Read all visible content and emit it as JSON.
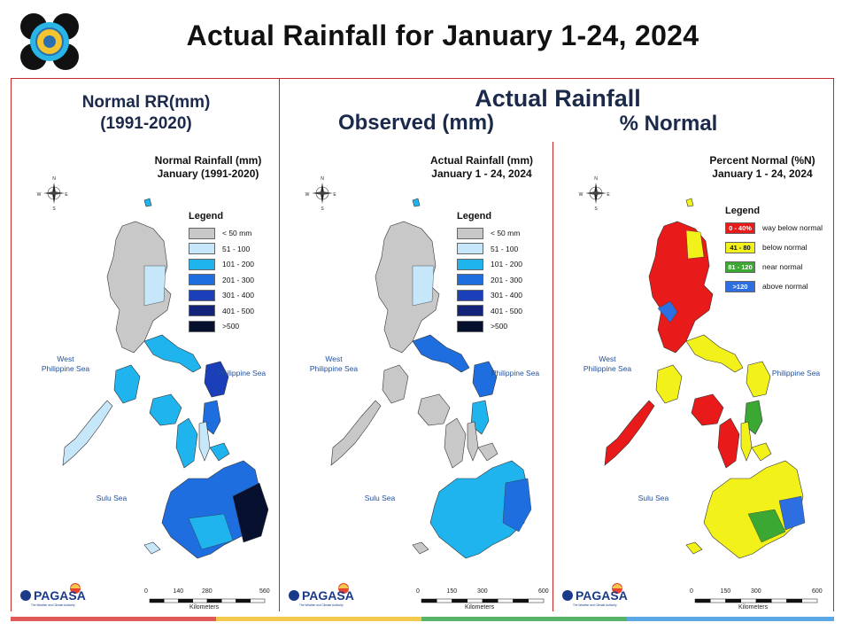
{
  "page": {
    "title": "Actual Rainfall for January 1-24, 2024"
  },
  "headers": {
    "normal_line1": "Normal RR(mm)",
    "normal_line2": "(1991-2020)",
    "actual_rainfall": "Actual Rainfall",
    "observed": "Observed (mm)",
    "percent_normal": "% Normal"
  },
  "panels": [
    {
      "title_line1": "Normal Rainfall (mm)",
      "title_line2": "January (1991-2020)",
      "legend_title": "Legend",
      "legend": [
        {
          "label": "< 50 mm",
          "color": "#c8c8c8"
        },
        {
          "label": "51 - 100",
          "color": "#c6e6fa"
        },
        {
          "label": "101 - 200",
          "color": "#20b4ef"
        },
        {
          "label": "201 - 300",
          "color": "#1e6ee0"
        },
        {
          "label": "301 - 400",
          "color": "#1a3fb8"
        },
        {
          "label": "401 - 500",
          "color": "#12257a"
        },
        {
          "label": ">500",
          "color": "#07102e"
        }
      ],
      "sea_west_1": "West",
      "sea_west_2": "Philippine Sea",
      "sea_east": "Philippine Sea",
      "sea_south": "Sulu Sea",
      "scale": [
        "0",
        "140",
        "280",
        "560"
      ],
      "scale_unit": "Kilometers"
    },
    {
      "title_line1": "Actual Rainfall (mm)",
      "title_line2": "January 1 - 24, 2024",
      "legend_title": "Legend",
      "legend": [
        {
          "label": "< 50 mm",
          "color": "#c8c8c8"
        },
        {
          "label": "51 - 100",
          "color": "#c6e6fa"
        },
        {
          "label": "101 - 200",
          "color": "#20b4ef"
        },
        {
          "label": "201 - 300",
          "color": "#1e6ee0"
        },
        {
          "label": "301 - 400",
          "color": "#1a3fb8"
        },
        {
          "label": "401 - 500",
          "color": "#12257a"
        },
        {
          "label": ">500",
          "color": "#07102e"
        }
      ],
      "sea_west_1": "West",
      "sea_west_2": "Philippine Sea",
      "sea_east": "Philippine Sea",
      "sea_south": "Sulu Sea",
      "scale": [
        "0",
        "150",
        "300",
        "600"
      ],
      "scale_unit": "Kilometers"
    },
    {
      "title_line1": "Percent Normal (%N)",
      "title_line2": "January 1 - 24, 2024",
      "legend_title": "Legend",
      "legend": [
        {
          "swatch": "0 - 40%",
          "label": "way below normal",
          "color": "#e81a1a"
        },
        {
          "swatch": "41 - 80",
          "label": "below normal",
          "color": "#f2f21a"
        },
        {
          "swatch": "81 - 120",
          "label": "near normal",
          "color": "#3aa832"
        },
        {
          "swatch": ">120",
          "label": "above normal",
          "color": "#2d6fe0"
        }
      ],
      "sea_west_1": "West",
      "sea_west_2": "Philippine Sea",
      "sea_east": "Philippine Sea",
      "sea_south": "Sulu Sea",
      "scale": [
        "0",
        "150",
        "300",
        "600"
      ],
      "scale_unit": "Kilometers"
    }
  ],
  "footer": {
    "brand": "PAGASA",
    "tagline": "The Weather and Climate Authority",
    "stripe_colors": [
      "#e05a5a",
      "#f2c94c",
      "#58b368",
      "#5aa9e6"
    ]
  },
  "colors": {
    "frame": "#c62828",
    "header_text": "#1b2a4a",
    "sea_text": "#1f4f9c"
  }
}
